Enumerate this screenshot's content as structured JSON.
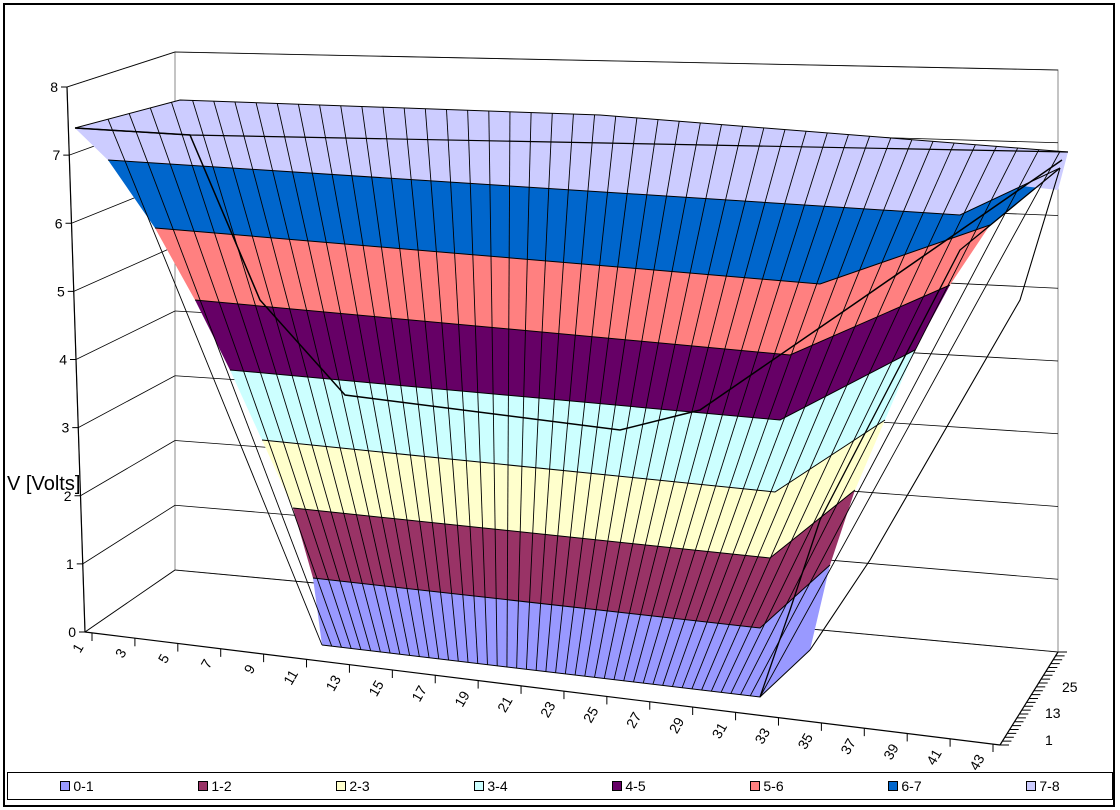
{
  "chart_data": {
    "type": "surface-3d",
    "ylabel": "V [Volts]",
    "zlim": [
      0,
      8
    ],
    "z_ticks": [
      "0",
      "1",
      "2",
      "3",
      "4",
      "5",
      "6",
      "7",
      "8"
    ],
    "x_ticks": [
      "1",
      "3",
      "5",
      "7",
      "9",
      "11",
      "13",
      "15",
      "17",
      "19",
      "21",
      "23",
      "25",
      "27",
      "29",
      "31",
      "33",
      "35",
      "37",
      "39",
      "41",
      "43"
    ],
    "y_ticks": [
      "1",
      "13",
      "25"
    ],
    "grid": true,
    "legend_position": "bottom",
    "bands": [
      {
        "label": "0-1",
        "color": "#9999ff"
      },
      {
        "label": "1-2",
        "color": "#993366"
      },
      {
        "label": "2-3",
        "color": "#ffffcc"
      },
      {
        "label": "3-4",
        "color": "#ccffff"
      },
      {
        "label": "4-5",
        "color": "#660066"
      },
      {
        "label": "5-6",
        "color": "#ff8080"
      },
      {
        "label": "6-7",
        "color": "#0066cc"
      },
      {
        "label": "7-8",
        "color": "#ccccff"
      }
    ]
  }
}
